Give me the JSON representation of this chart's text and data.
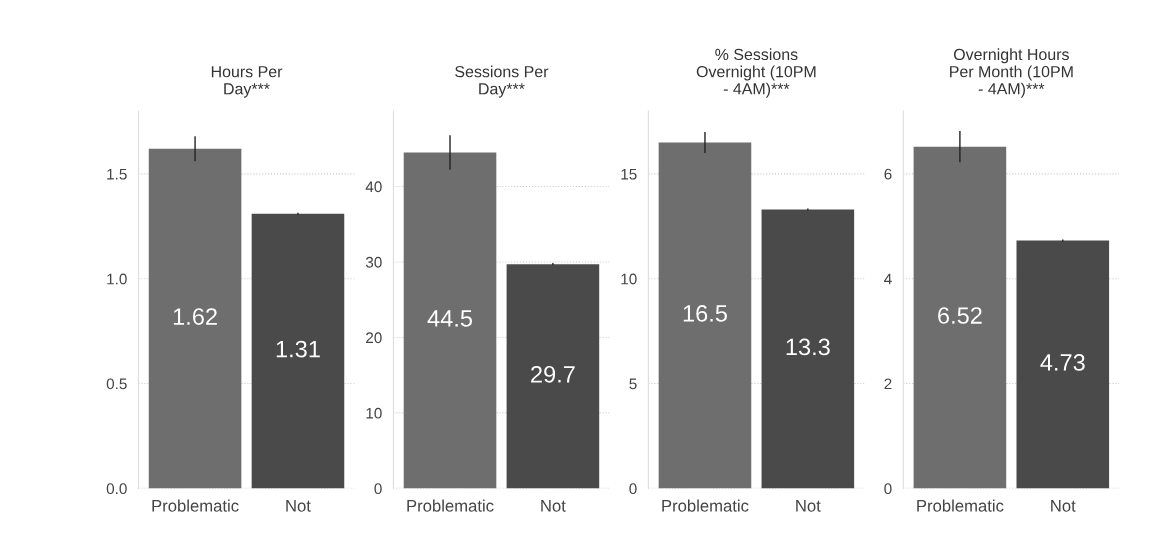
{
  "chart_data": [
    {
      "type": "bar",
      "title": "Hours Per\nDay***",
      "categories": [
        "Problematic",
        "Not"
      ],
      "values": [
        1.62,
        1.31
      ],
      "errors": [
        0.06,
        0.005
      ],
      "colors": [
        "#6e6e6e",
        "#4a4a4a"
      ],
      "ylim": [
        0,
        1.8
      ],
      "yticks": [
        {
          "value": 0,
          "label": "0.0"
        },
        0.5,
        {
          "value": 1,
          "label": "1.0"
        },
        1.5
      ],
      "grid": "y",
      "data_labels": true
    },
    {
      "type": "bar",
      "title": "Sessions Per\nDay***",
      "categories": [
        "Problematic",
        "Not"
      ],
      "values": [
        44.5,
        29.7
      ],
      "errors": [
        2.3,
        0.15
      ],
      "colors": [
        "#6e6e6e",
        "#4a4a4a"
      ],
      "ylim": [
        0,
        50
      ],
      "yticks": [
        0,
        10,
        20,
        30,
        40
      ],
      "grid": "y",
      "data_labels": true
    },
    {
      "type": "bar",
      "title": "% Sessions\nOvernight (10PM\n- 4AM)***",
      "categories": [
        "Problematic",
        "Not"
      ],
      "values": [
        16.5,
        13.3
      ],
      "errors": [
        0.5,
        0.05
      ],
      "colors": [
        "#6e6e6e",
        "#4a4a4a"
      ],
      "ylim": [
        0,
        18
      ],
      "yticks": [
        0,
        5,
        10,
        15
      ],
      "grid": "y",
      "data_labels": true
    },
    {
      "type": "bar",
      "title": "Overnight Hours\nPer Month (10PM\n- 4AM)***",
      "categories": [
        "Problematic",
        "Not"
      ],
      "values": [
        6.52,
        4.73
      ],
      "errors": [
        0.3,
        0.02
      ],
      "colors": [
        "#6e6e6e",
        "#4a4a4a"
      ],
      "ylim": [
        0,
        7.2
      ],
      "yticks": [
        0,
        2,
        4,
        6
      ],
      "grid": "y",
      "data_labels": true
    }
  ]
}
